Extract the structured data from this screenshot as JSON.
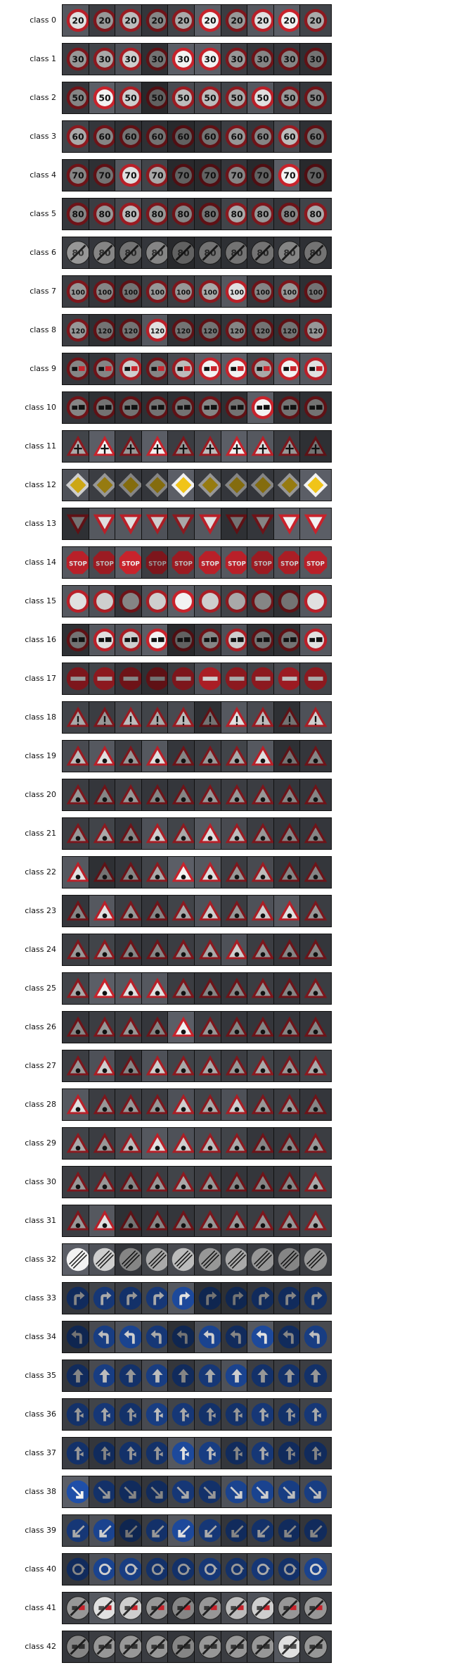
{
  "row_labels": [
    "class 0",
    "class 1",
    "class 2",
    "class 3",
    "class 4",
    "class 5",
    "class 6",
    "class 7",
    "class 8",
    "class 9",
    "class 10",
    "class 11",
    "class 12",
    "class 13",
    "class 14",
    "class 15",
    "class 16",
    "class 17",
    "class 18",
    "class 19",
    "class 20",
    "class 21",
    "class 22",
    "class 23",
    "class 24",
    "class 25",
    "class 26",
    "class 27",
    "class 28",
    "class 29",
    "class 30",
    "class 31",
    "class 32",
    "class 33",
    "class 34",
    "class 35",
    "class 36",
    "class 37",
    "class 38",
    "class 39",
    "class 40",
    "class 41",
    "class 42"
  ],
  "samples_per_class": 10,
  "sign_types": [
    {
      "shape": "circle-red",
      "glyph": "20"
    },
    {
      "shape": "circle-red",
      "glyph": "30"
    },
    {
      "shape": "circle-red",
      "glyph": "50"
    },
    {
      "shape": "circle-red",
      "glyph": "60"
    },
    {
      "shape": "circle-red",
      "glyph": "70"
    },
    {
      "shape": "circle-red",
      "glyph": "80"
    },
    {
      "shape": "end-limit",
      "glyph": "80"
    },
    {
      "shape": "circle-red",
      "glyph": "100"
    },
    {
      "shape": "circle-red",
      "glyph": "120"
    },
    {
      "shape": "circle-red",
      "glyph": "cars"
    },
    {
      "shape": "circle-red",
      "glyph": "trucks"
    },
    {
      "shape": "triangle",
      "glyph": "cross"
    },
    {
      "shape": "diamond",
      "glyph": ""
    },
    {
      "shape": "yield",
      "glyph": ""
    },
    {
      "shape": "octagon",
      "glyph": "STOP"
    },
    {
      "shape": "circle-red",
      "glyph": ""
    },
    {
      "shape": "circle-red",
      "glyph": "truck"
    },
    {
      "shape": "no-entry",
      "glyph": ""
    },
    {
      "shape": "triangle",
      "glyph": "!"
    },
    {
      "shape": "triangle",
      "glyph": "curve-left"
    },
    {
      "shape": "triangle",
      "glyph": "curve-right"
    },
    {
      "shape": "triangle",
      "glyph": "double-curve"
    },
    {
      "shape": "triangle",
      "glyph": "bumpy"
    },
    {
      "shape": "triangle",
      "glyph": "slippery"
    },
    {
      "shape": "triangle",
      "glyph": "narrows"
    },
    {
      "shape": "triangle",
      "glyph": "roadwork"
    },
    {
      "shape": "triangle",
      "glyph": "signals"
    },
    {
      "shape": "triangle",
      "glyph": "pedestrian"
    },
    {
      "shape": "triangle",
      "glyph": "children"
    },
    {
      "shape": "triangle",
      "glyph": "bicycle"
    },
    {
      "shape": "triangle",
      "glyph": "snow"
    },
    {
      "shape": "triangle",
      "glyph": "deer"
    },
    {
      "shape": "end-all",
      "glyph": ""
    },
    {
      "shape": "circle-blue",
      "glyph": "right-turn"
    },
    {
      "shape": "circle-blue",
      "glyph": "left-turn"
    },
    {
      "shape": "circle-blue",
      "glyph": "up"
    },
    {
      "shape": "circle-blue",
      "glyph": "up-right"
    },
    {
      "shape": "circle-blue",
      "glyph": "up-left"
    },
    {
      "shape": "circle-blue",
      "glyph": "keep-right"
    },
    {
      "shape": "circle-blue",
      "glyph": "keep-left"
    },
    {
      "shape": "circle-blue",
      "glyph": "roundabout"
    },
    {
      "shape": "end-limit",
      "glyph": "cars"
    },
    {
      "shape": "end-limit",
      "glyph": "trucks"
    }
  ],
  "brightness_pattern": [
    [
      0.9,
      0.5,
      0.7,
      0.4,
      0.6,
      1.0,
      0.5,
      0.9,
      1.0,
      0.6
    ],
    [
      0.5,
      0.6,
      0.8,
      0.3,
      1.0,
      1.0,
      0.5,
      0.4,
      0.4,
      0.3
    ],
    [
      0.4,
      1.0,
      0.8,
      0.2,
      0.7,
      0.7,
      0.6,
      0.9,
      0.5,
      0.4
    ],
    [
      0.6,
      0.4,
      0.3,
      0.3,
      0.2,
      0.3,
      0.5,
      0.4,
      0.7,
      0.3
    ],
    [
      0.4,
      0.3,
      0.9,
      0.6,
      0.2,
      0.2,
      0.4,
      0.2,
      1.0,
      0.2
    ],
    [
      0.4,
      0.5,
      0.7,
      0.5,
      0.4,
      0.3,
      0.6,
      0.5,
      0.4,
      0.6
    ],
    [
      0.5,
      0.4,
      0.3,
      0.4,
      0.2,
      0.3,
      0.3,
      0.3,
      0.4,
      0.3
    ],
    [
      0.5,
      0.4,
      0.3,
      0.5,
      0.5,
      0.6,
      0.9,
      0.4,
      0.5,
      0.3
    ],
    [
      0.5,
      0.3,
      0.3,
      0.9,
      0.3,
      0.3,
      0.4,
      0.3,
      0.3,
      0.5
    ],
    [
      0.4,
      0.4,
      0.8,
      0.4,
      0.7,
      1.0,
      1.0,
      0.6,
      1.0,
      0.9
    ],
    [
      0.4,
      0.3,
      0.3,
      0.3,
      0.3,
      0.4,
      0.3,
      1.0,
      0.3,
      0.3
    ],
    [
      0.6,
      1.0,
      0.5,
      1.0,
      0.5,
      0.7,
      1.0,
      0.9,
      0.5,
      0.3
    ],
    [
      0.8,
      0.5,
      0.4,
      0.4,
      1.0,
      0.5,
      0.4,
      0.4,
      0.5,
      1.0
    ],
    [
      0.3,
      0.9,
      0.9,
      0.8,
      0.6,
      0.9,
      0.3,
      0.4,
      1.0,
      1.0
    ],
    [
      0.9,
      0.7,
      1.0,
      0.5,
      0.7,
      0.9,
      0.9,
      0.7,
      0.8,
      0.9
    ],
    [
      0.9,
      0.8,
      0.4,
      0.8,
      1.0,
      0.8,
      0.6,
      0.4,
      0.3,
      0.9
    ],
    [
      0.3,
      0.9,
      0.8,
      1.0,
      0.2,
      0.4,
      0.8,
      0.3,
      0.3,
      0.9
    ],
    [
      0.5,
      0.6,
      0.4,
      0.3,
      0.5,
      0.8,
      0.6,
      0.6,
      0.7,
      0.6
    ],
    [
      0.6,
      0.5,
      0.7,
      0.6,
      0.7,
      0.3,
      0.9,
      0.7,
      0.3,
      0.8
    ],
    [
      0.7,
      0.9,
      0.5,
      0.9,
      0.4,
      0.5,
      0.6,
      0.9,
      0.3,
      0.4
    ],
    [
      0.5,
      0.4,
      0.5,
      0.4,
      0.4,
      0.5,
      0.5,
      0.5,
      0.4,
      0.4
    ],
    [
      0.5,
      0.6,
      0.4,
      0.8,
      0.6,
      0.9,
      0.7,
      0.5,
      0.4,
      0.4
    ],
    [
      0.9,
      0.3,
      0.4,
      0.6,
      1.0,
      0.9,
      0.5,
      0.7,
      0.4,
      0.4
    ],
    [
      0.4,
      0.9,
      0.5,
      0.4,
      0.6,
      0.8,
      0.5,
      0.8,
      0.9,
      0.5
    ],
    [
      0.5,
      0.6,
      0.4,
      0.4,
      0.5,
      0.6,
      0.8,
      0.5,
      0.4,
      0.4
    ],
    [
      0.6,
      1.0,
      0.9,
      0.9,
      0.5,
      0.4,
      0.4,
      0.5,
      0.4,
      0.5
    ],
    [
      0.4,
      0.5,
      0.5,
      0.4,
      1.0,
      0.5,
      0.4,
      0.4,
      0.4,
      0.4
    ],
    [
      0.5,
      0.8,
      0.4,
      0.8,
      0.6,
      0.6,
      0.5,
      0.6,
      0.5,
      0.6
    ],
    [
      0.9,
      0.5,
      0.5,
      0.5,
      0.8,
      0.6,
      0.8,
      0.5,
      0.5,
      0.4
    ],
    [
      0.6,
      0.5,
      0.7,
      0.9,
      0.8,
      0.7,
      0.6,
      0.4,
      0.4,
      0.5
    ],
    [
      0.5,
      0.5,
      0.4,
      0.5,
      0.6,
      0.5,
      0.4,
      0.4,
      0.4,
      0.6
    ],
    [
      0.5,
      0.9,
      0.3,
      0.4,
      0.4,
      0.5,
      0.5,
      0.5,
      0.5,
      0.6
    ],
    [
      1.0,
      0.8,
      0.4,
      0.6,
      0.7,
      0.5,
      0.6,
      0.5,
      0.4,
      0.5
    ],
    [
      0.4,
      0.6,
      0.5,
      0.6,
      0.9,
      0.3,
      0.3,
      0.4,
      0.4,
      0.5
    ],
    [
      0.3,
      0.7,
      0.8,
      0.6,
      0.3,
      0.8,
      0.4,
      0.9,
      0.4,
      0.7
    ],
    [
      0.4,
      0.7,
      0.5,
      0.7,
      0.4,
      0.6,
      0.8,
      0.5,
      0.5,
      0.5
    ],
    [
      0.5,
      0.6,
      0.5,
      0.7,
      0.6,
      0.5,
      0.5,
      0.6,
      0.5,
      0.6
    ],
    [
      0.5,
      0.4,
      0.5,
      0.5,
      0.9,
      0.7,
      0.4,
      0.6,
      0.4,
      0.4
    ],
    [
      1.0,
      0.5,
      0.4,
      0.4,
      0.6,
      0.5,
      0.8,
      0.8,
      0.7,
      0.7
    ],
    [
      0.6,
      0.8,
      0.3,
      0.5,
      0.9,
      0.6,
      0.4,
      0.5,
      0.4,
      0.4
    ],
    [
      0.4,
      0.8,
      0.7,
      0.5,
      0.5,
      0.6,
      0.5,
      0.6,
      0.5,
      0.8
    ],
    [
      0.5,
      0.9,
      0.8,
      0.5,
      0.4,
      0.5,
      0.7,
      0.8,
      0.5,
      0.5
    ],
    [
      0.4,
      0.5,
      0.5,
      0.5,
      0.4,
      0.5,
      0.5,
      0.5,
      0.9,
      0.5
    ]
  ],
  "colors": {
    "sign_red": "#c8232c",
    "sign_blue": "#1f4fa8",
    "sign_white": "#f2f2f2",
    "sign_yellow": "#f0c419",
    "ink": "#111111",
    "page_bg": "#ffffff"
  }
}
